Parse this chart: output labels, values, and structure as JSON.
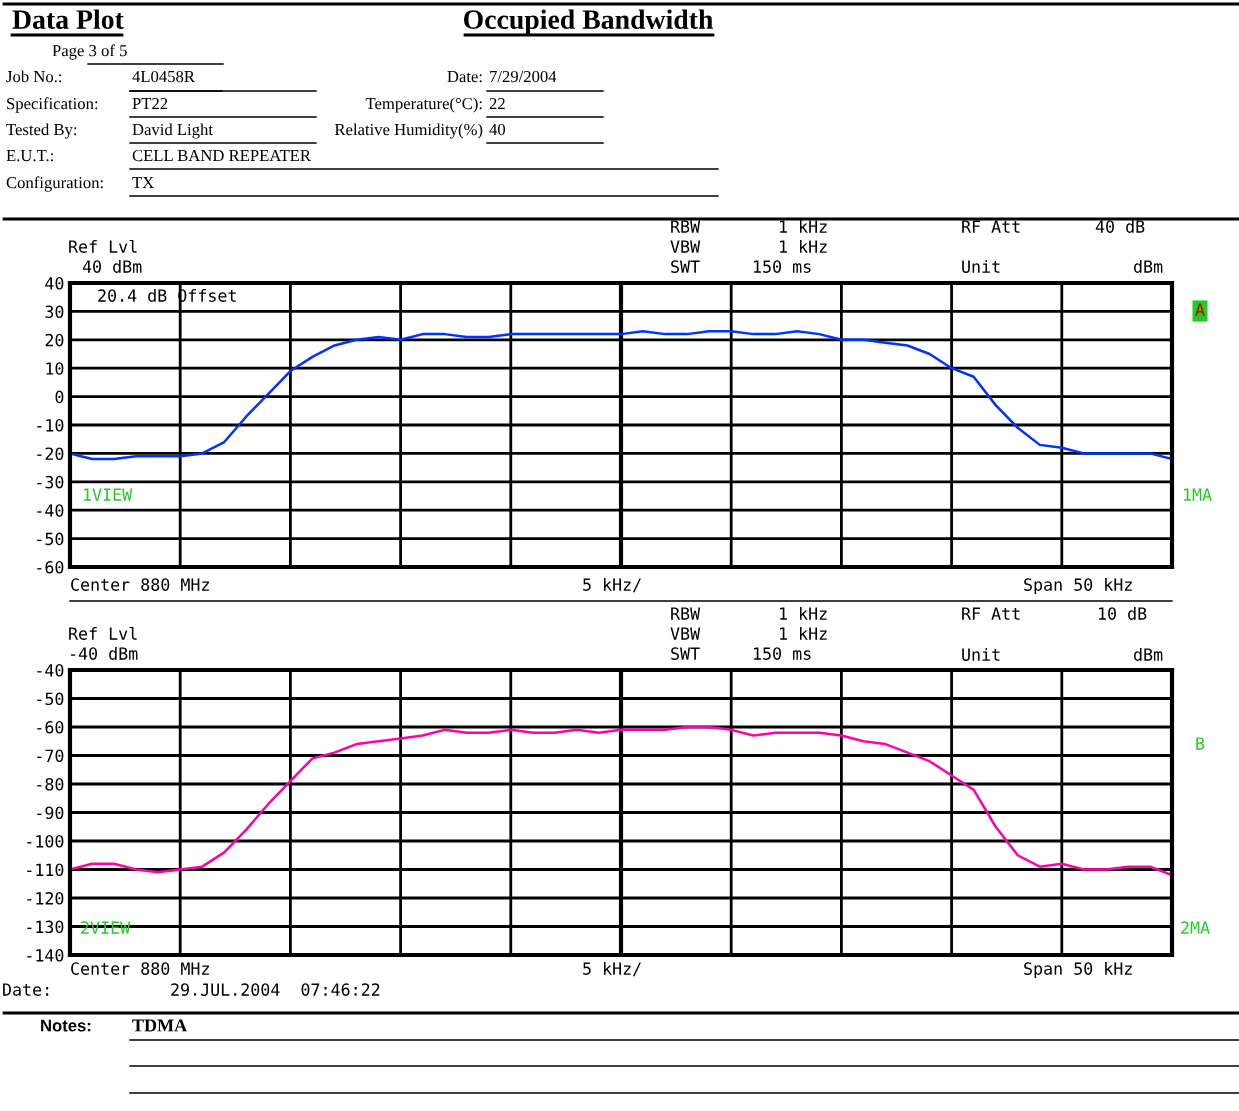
{
  "chart_data": [
    {
      "type": "line",
      "title": "Occupied Bandwidth",
      "categories": [
        null,
        null,
        null,
        null,
        null,
        null,
        null,
        null,
        null,
        null,
        null,
        null,
        null,
        null,
        null,
        null,
        null,
        null,
        null,
        null,
        null,
        null,
        null,
        null,
        null,
        null,
        null,
        null,
        null,
        null,
        null,
        null,
        null,
        null,
        null,
        null,
        null,
        null,
        null,
        null,
        null,
        null,
        null,
        null,
        null,
        null,
        null,
        null,
        null,
        null,
        null
      ],
      "series": [
        {
          "color": "#0033ff",
          "values": [
            -20,
            -22,
            -22,
            -21,
            -21,
            -21,
            -20,
            -16,
            -7,
            1,
            9,
            14,
            18,
            20,
            21,
            20,
            22,
            22,
            21,
            21,
            22,
            22,
            22,
            22,
            22,
            22,
            23,
            22,
            22,
            23,
            23,
            22,
            22,
            23,
            22,
            20,
            20,
            19,
            18,
            15,
            10,
            7,
            -3,
            -11,
            -17,
            -18,
            -20,
            -20,
            -20,
            -20,
            -22
          ]
        }
      ],
      "ylim": [
        -60,
        40
      ],
      "yticks": [
        -60,
        -50,
        -40,
        -30,
        -20,
        -10,
        0,
        10,
        20,
        30,
        40
      ],
      "grid": true,
      "legend": false,
      "annotations": [
        "Data Plot",
        "Page 3 of 5",
        "Job No.:",
        "4L0458R",
        "Date:",
        "7/29/2004",
        "Specification:",
        "PT22",
        "Temperature(°C):",
        "22",
        "Tested By:",
        "David Light",
        "Relative Humidity(%)",
        "40",
        "E.U.T.:",
        "CELL BAND REPEATER",
        "Configuration:",
        "TX",
        "Ref Lvl",
        "40 dBm",
        "RBW",
        "1 kHz",
        "VBW",
        "1 kHz",
        "SWT",
        "150 ms",
        "RF Att",
        "40 dB",
        "Unit",
        "dBm",
        "20.4 dB Offset",
        "1VIEW",
        "A",
        "1MA",
        "Center 880 MHz",
        "5 kHz/",
        "Span 50 kHz"
      ]
    },
    {
      "type": "line",
      "categories": [
        null,
        null,
        null,
        null,
        null,
        null,
        null,
        null,
        null,
        null,
        null,
        null,
        null,
        null,
        null,
        null,
        null,
        null,
        null,
        null,
        null,
        null,
        null,
        null,
        null,
        null,
        null,
        null,
        null,
        null,
        null,
        null,
        null,
        null,
        null,
        null,
        null,
        null,
        null,
        null,
        null,
        null,
        null,
        null,
        null,
        null,
        null,
        null,
        null,
        null,
        null
      ],
      "series": [
        {
          "color": "#ff00aa",
          "values": [
            -110,
            -108,
            -108,
            -110,
            -111,
            -110,
            -109,
            -104,
            -96,
            -87,
            -79,
            -71,
            -69,
            -66,
            -65,
            -64,
            -63,
            -61,
            -62,
            -62,
            -61,
            -62,
            -62,
            -61,
            -62,
            -61,
            -61,
            -61,
            -60,
            -60,
            -61,
            -63,
            -62,
            -62,
            -62,
            -63,
            -65,
            -66,
            -69,
            -72,
            -77,
            -82,
            -95,
            -105,
            -109,
            -108,
            -110,
            -110,
            -109,
            -109,
            -112
          ]
        }
      ],
      "ylim": [
        -140,
        -40
      ],
      "yticks": [
        -140,
        -130,
        -120,
        -110,
        -100,
        -90,
        -80,
        -70,
        -60,
        -50,
        -40
      ],
      "grid": true,
      "legend": false,
      "annotations": [
        "Ref Lvl",
        "-40 dBm",
        "RBW",
        "1 kHz",
        "VBW",
        "1 kHz",
        "SWT",
        "150 ms",
        "RF Att",
        "10 dB",
        "Unit",
        "dBm",
        "B",
        "2VIEW",
        "2MA",
        "Center 880 MHz",
        "5 kHz/",
        "Span 50 kHz",
        "Date:",
        "29.JUL.2004  07:46:22",
        "Notes:",
        "TDMA"
      ]
    }
  ]
}
